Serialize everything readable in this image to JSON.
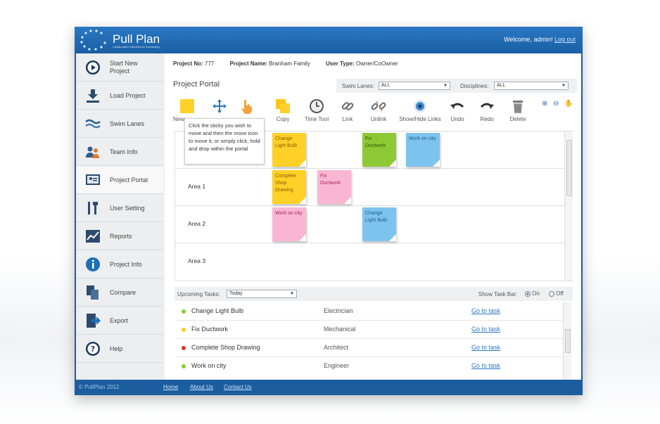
{
  "header": {
    "logo_text": "Pull Plan",
    "logo_subtext": "Collaborative Interference Scheduling",
    "welcome": "Welcome, admin!",
    "logout": "Log out"
  },
  "sidebar": {
    "items": [
      {
        "label": "Start New Project",
        "icon": "play-icon"
      },
      {
        "label": "Load Project",
        "icon": "download-icon"
      },
      {
        "label": "Swim Lanes",
        "icon": "waves-icon"
      },
      {
        "label": "Team Info",
        "icon": "team-icon"
      },
      {
        "label": "Project Portal",
        "icon": "portal-icon"
      },
      {
        "label": "User Setting",
        "icon": "tools-icon"
      },
      {
        "label": "Reports",
        "icon": "chart-icon"
      },
      {
        "label": "Project Info",
        "icon": "info-icon"
      },
      {
        "label": "Compare",
        "icon": "compare-icon"
      },
      {
        "label": "Export",
        "icon": "export-icon"
      },
      {
        "label": "Help",
        "icon": "help-icon"
      }
    ]
  },
  "info": {
    "project_no_label": "Project No:",
    "project_no": "777",
    "project_name_label": "Project Name:",
    "project_name": "Branham Family",
    "user_type_label": "User Type:",
    "user_type": "Owner/CoOwner"
  },
  "portal": {
    "title": "Project Portal",
    "swim_lanes_label": "Swim Lanes:",
    "swim_lanes_value": "ALL",
    "disciplines_label": "Disciplines:",
    "disciplines_value": "ALL"
  },
  "toolbar": {
    "tools": [
      {
        "label": "New",
        "icon": "sticky-note-icon"
      },
      {
        "label": "",
        "icon": "move-icon"
      },
      {
        "label": "",
        "icon": "hand-pointer-icon"
      },
      {
        "label": "Copy",
        "icon": "copy-icon"
      },
      {
        "label": "Time Tool",
        "icon": "clock-icon"
      },
      {
        "label": "Link",
        "icon": "link-icon"
      },
      {
        "label": "Unlink",
        "icon": "unlink-icon"
      },
      {
        "label": "Show/Hide Links",
        "icon": "eye-icon"
      },
      {
        "label": "Undo",
        "icon": "undo-icon"
      },
      {
        "label": "Redo",
        "icon": "redo-icon"
      },
      {
        "label": "Delete",
        "icon": "trash-icon"
      }
    ],
    "tooltip": "Click the sticky you wish to move and then the move icon to move it, or simply click, hold and drop within the portal"
  },
  "lanes": [
    {
      "label": ""
    },
    {
      "label": "Area 1"
    },
    {
      "label": "Area 2"
    },
    {
      "label": "Area 3"
    }
  ],
  "stickies": [
    {
      "text": "Change Light Bulb",
      "color": "yellow"
    },
    {
      "text": "Fix Ductwork",
      "color": "green"
    },
    {
      "text": "Work on city",
      "color": "blue"
    },
    {
      "text": "Complete Shop Drawing",
      "color": "yellow"
    },
    {
      "text": "Fix Ductwork",
      "color": "pink"
    },
    {
      "text": "Work on city",
      "color": "pink"
    },
    {
      "text": "Change Light Bulb",
      "color": "blue"
    }
  ],
  "tasks": {
    "upcoming_label": "Upcoming Tasks:",
    "upcoming_value": "Today",
    "show_bar_label": "Show Task Bar:",
    "on_label": "On",
    "off_label": "Off",
    "rows": [
      {
        "name": "Change Light Bulb",
        "discipline": "Electrician",
        "link": "Go to task",
        "dot_color": "#8fc835"
      },
      {
        "name": "Fix Ductwork",
        "discipline": "Mechanical",
        "link": "Go to task",
        "dot_color": "#ffcc22"
      },
      {
        "name": "Complete Shop Drawing",
        "discipline": "Architect",
        "link": "Go to task",
        "dot_color": "#e0332a"
      },
      {
        "name": "Work on city",
        "discipline": "Engineer",
        "link": "Go to task",
        "dot_color": "#8fc835"
      }
    ]
  },
  "footer": {
    "copyright": "© PullPlan 2012",
    "home": "Home",
    "about": "About Us",
    "contact": "Contact Us"
  }
}
